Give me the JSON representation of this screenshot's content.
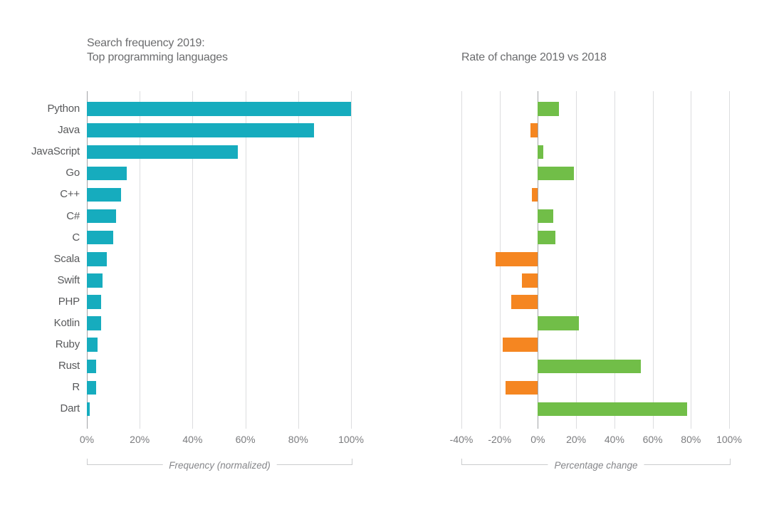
{
  "chart_data": [
    {
      "type": "bar",
      "orientation": "horizontal",
      "title_lines": [
        "Search frequency 2019:",
        "Top programming languages"
      ],
      "categories": [
        "Python",
        "Java",
        "JavaScript",
        "Go",
        "C++",
        "C#",
        "C",
        "Scala",
        "Swift",
        "PHP",
        "Kotlin",
        "Ruby",
        "Rust",
        "R",
        "Dart"
      ],
      "values": [
        100,
        86,
        57,
        15,
        13,
        11,
        10,
        7.5,
        6,
        5.5,
        5.5,
        4,
        3.5,
        3.5,
        1
      ],
      "xlabel": "Frequency (normalized)",
      "xlim": [
        0,
        100
      ],
      "xticks": [
        0,
        20,
        40,
        60,
        80,
        100
      ],
      "xtick_labels": [
        "0%",
        "20%",
        "40%",
        "60%",
        "80%",
        "100%"
      ],
      "grid": true,
      "bar_color": "#16acbe"
    },
    {
      "type": "bar",
      "orientation": "horizontal",
      "title_lines": [
        "Rate of change 2019 vs 2018"
      ],
      "categories": [
        "Python",
        "Java",
        "JavaScript",
        "Go",
        "C++",
        "C#",
        "C",
        "Scala",
        "Swift",
        "PHP",
        "Kotlin",
        "Ruby",
        "Rust",
        "R",
        "Dart"
      ],
      "values": [
        11,
        -4,
        3,
        19,
        -3,
        8,
        9,
        -22,
        -8.5,
        -14,
        21.5,
        -18.5,
        54,
        -17,
        78
      ],
      "xlabel": "Percentage change",
      "xlim": [
        -40,
        100
      ],
      "xticks": [
        -40,
        -20,
        0,
        20,
        40,
        60,
        80,
        100
      ],
      "xtick_labels": [
        "-40%",
        "-20%",
        "0%",
        "20%",
        "40%",
        "60%",
        "80%",
        "100%"
      ],
      "grid": true,
      "positive_color": "#71be48",
      "negative_color": "#f58621"
    }
  ]
}
